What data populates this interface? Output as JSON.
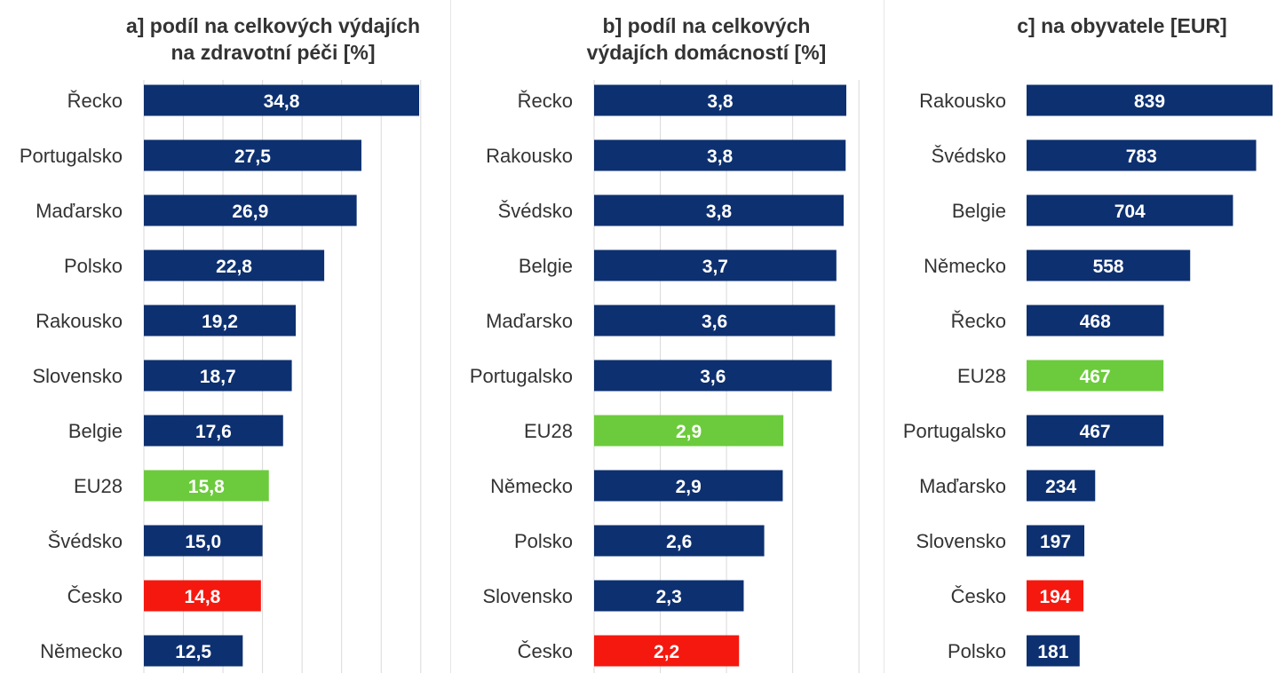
{
  "colors": {
    "country": "#0d3070",
    "eu": "#6ccb3c",
    "czech": "#f5180f",
    "grid": "#d9d9d9",
    "text": "#333333",
    "bar_label": "#ffffff"
  },
  "chart_data": [
    {
      "type": "bar",
      "orientation": "horizontal",
      "title_lines": [
        "a] podíl na celkových výdajích",
        "na zdravotní péči [%]"
      ],
      "categories": [
        "Řecko",
        "Portugalsko",
        "Maďarsko",
        "Polsko",
        "Rakousko",
        "Slovensko",
        "Belgie",
        "EU28",
        "Švédsko",
        "Česko",
        "Německo"
      ],
      "values": [
        34.8,
        27.5,
        26.9,
        22.8,
        19.2,
        18.7,
        17.6,
        15.8,
        15.0,
        14.8,
        12.5
      ],
      "labels": [
        "34,8",
        "27,5",
        "26,9",
        "22,8",
        "19,2",
        "18,7",
        "17,6",
        "15,8",
        "15,0",
        "14,8",
        "12,5"
      ],
      "highlight": {
        "EU28": "eu",
        "Česko": "czech"
      },
      "xlim": [
        0,
        35
      ],
      "grid": true
    },
    {
      "type": "bar",
      "orientation": "horizontal",
      "title_lines": [
        "b] podíl na celkových",
        "výdajích domácností [%]"
      ],
      "categories": [
        "Řecko",
        "Rakousko",
        "Švédsko",
        "Belgie",
        "Maďarsko",
        "Portugalsko",
        "EU28",
        "Německo",
        "Polsko",
        "Slovensko",
        "Česko"
      ],
      "values": [
        3.81,
        3.8,
        3.77,
        3.66,
        3.64,
        3.59,
        2.86,
        2.85,
        2.57,
        2.26,
        2.19
      ],
      "labels": [
        "3,8",
        "3,8",
        "3,8",
        "3,7",
        "3,6",
        "3,6",
        "2,9",
        "2,9",
        "2,6",
        "2,3",
        "2,2"
      ],
      "highlight": {
        "EU28": "eu",
        "Česko": "czech"
      },
      "xlim": [
        0,
        4
      ],
      "grid": true
    },
    {
      "type": "bar",
      "orientation": "horizontal",
      "title_lines": [
        "c] na obyvatele [EUR]"
      ],
      "categories": [
        "Rakousko",
        "Švédsko",
        "Belgie",
        "Německo",
        "Řecko",
        "EU28",
        "Portugalsko",
        "Maďarsko",
        "Slovensko",
        "Česko",
        "Polsko"
      ],
      "values": [
        839,
        783,
        704,
        558,
        468,
        467,
        467,
        234,
        197,
        194,
        181
      ],
      "labels": [
        "839",
        "783",
        "704",
        "558",
        "468",
        "467",
        "467",
        "234",
        "197",
        "194",
        "181"
      ],
      "highlight": {
        "EU28": "eu",
        "Česko": "czech"
      },
      "xlim": [
        0,
        850
      ],
      "grid": false
    }
  ]
}
